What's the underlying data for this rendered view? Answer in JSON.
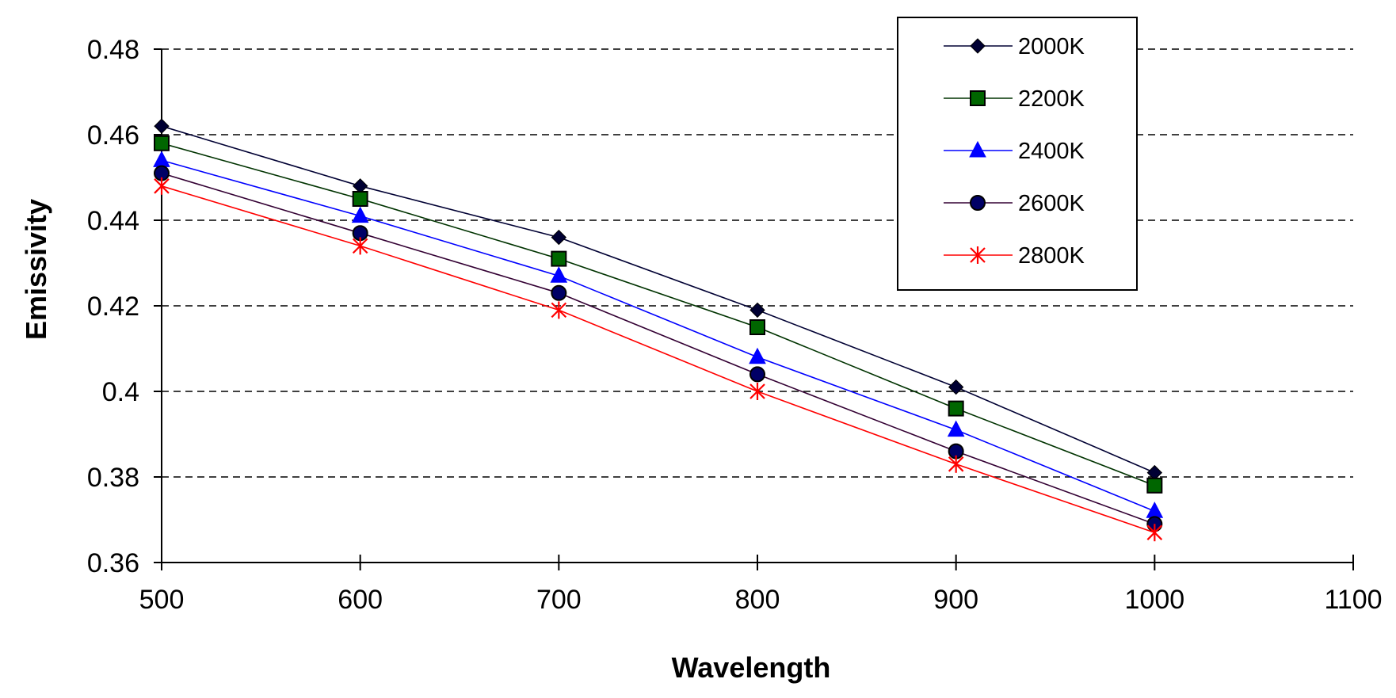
{
  "chart_data": {
    "type": "line",
    "title": "",
    "xlabel": "Wavelength",
    "ylabel": "Emissivity",
    "xlim": [
      500,
      1100
    ],
    "ylim": [
      0.36,
      0.48
    ],
    "x_ticks": [
      500,
      600,
      700,
      800,
      900,
      1000,
      1100
    ],
    "y_ticks": [
      0.36,
      0.38,
      0.4,
      0.42,
      0.44,
      0.46,
      0.48
    ],
    "x_tick_labels": [
      "500",
      "600",
      "700",
      "800",
      "900",
      "1000",
      "1100"
    ],
    "y_tick_labels": [
      "0.36",
      "0.38",
      "0.4",
      "0.42",
      "0.44",
      "0.46",
      "0.48"
    ],
    "grid": "horizontal dashed",
    "legend_position": "top-right",
    "x": [
      500,
      600,
      700,
      800,
      900,
      1000
    ],
    "series": [
      {
        "name": "2000K",
        "values": [
          0.462,
          0.448,
          0.436,
          0.419,
          0.401,
          0.381
        ],
        "color": "#000033",
        "marker": "diamond"
      },
      {
        "name": "2200K",
        "values": [
          0.458,
          0.445,
          0.431,
          0.415,
          0.396,
          0.378
        ],
        "color": "#003300",
        "marker": "square"
      },
      {
        "name": "2400K",
        "values": [
          0.454,
          0.441,
          0.427,
          0.408,
          0.391,
          0.372
        ],
        "color": "#0000ff",
        "marker": "triangle"
      },
      {
        "name": "2600K",
        "values": [
          0.451,
          0.437,
          0.423,
          0.404,
          0.386,
          0.369
        ],
        "color": "#330033",
        "marker": "circle"
      },
      {
        "name": "2800K",
        "values": [
          0.448,
          0.434,
          0.419,
          0.4,
          0.383,
          0.367
        ],
        "color": "#ff0000",
        "marker": "star"
      }
    ]
  }
}
